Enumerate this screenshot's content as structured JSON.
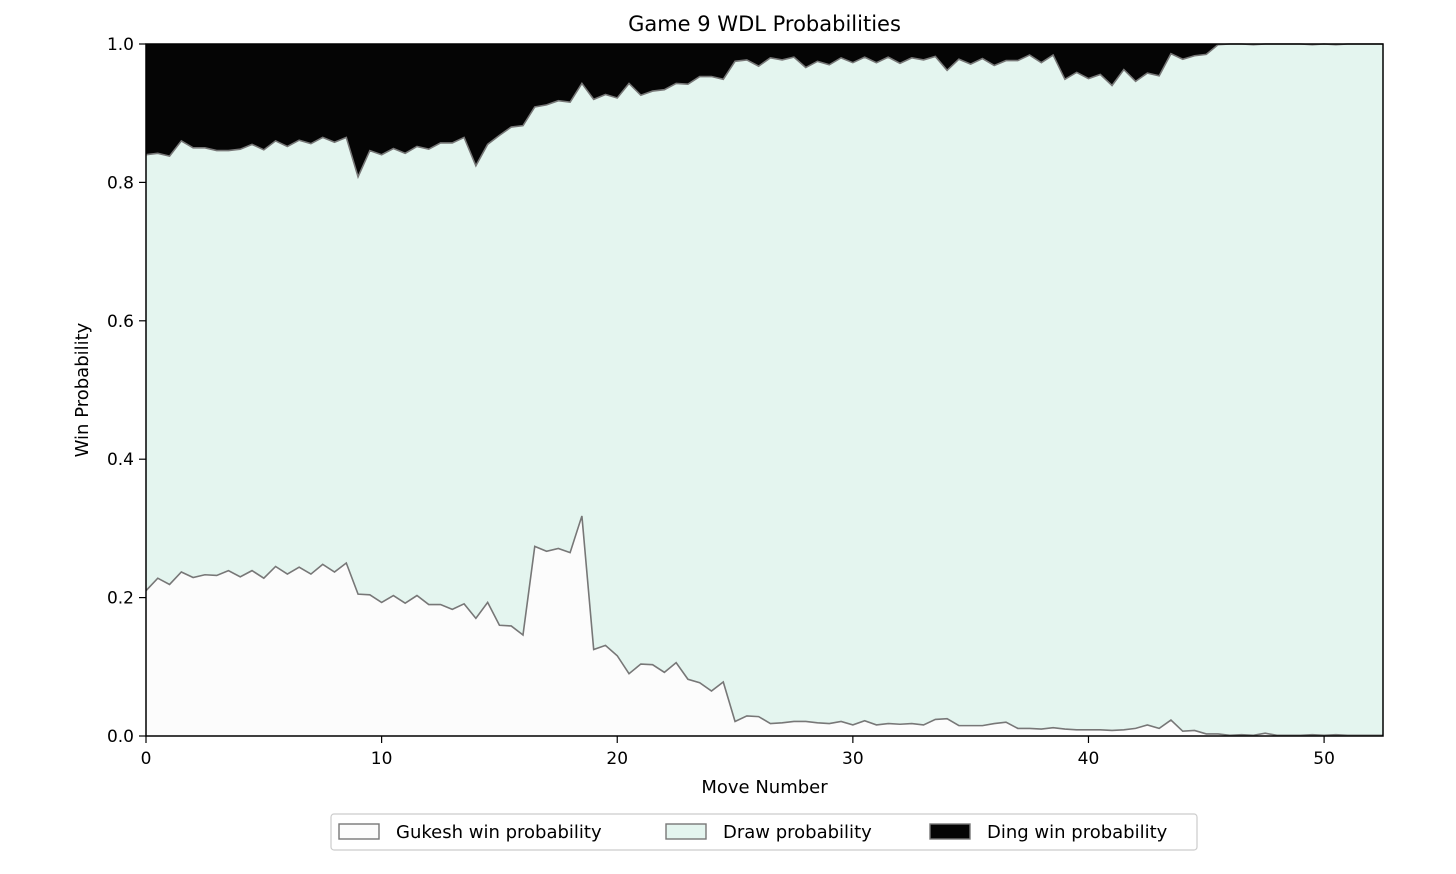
{
  "chart_data": {
    "type": "area",
    "title": "Game 9 WDL Probabilities",
    "xlabel": "Move Number",
    "ylabel": "Win Probability",
    "xlim": [
      0,
      52.5
    ],
    "ylim": [
      0,
      1.0
    ],
    "xticks": [
      0,
      10,
      20,
      30,
      40,
      50
    ],
    "yticks": [
      "0.0",
      "0.2",
      "0.4",
      "0.6",
      "0.8",
      "1.0"
    ],
    "grid": false,
    "legend_position": "bottom-center",
    "x": [
      0,
      0.5,
      1,
      1.5,
      2,
      2.5,
      3,
      3.5,
      4,
      4.5,
      5,
      5.5,
      6,
      6.5,
      7,
      7.5,
      8,
      8.5,
      9,
      9.5,
      10,
      10.5,
      11,
      11.5,
      12,
      12.5,
      13,
      13.5,
      14,
      14.5,
      15,
      15.5,
      16,
      16.5,
      17,
      17.5,
      18,
      18.5,
      19,
      19.5,
      20,
      20.5,
      21,
      21.5,
      22,
      22.5,
      23,
      23.5,
      24,
      24.5,
      25,
      25.5,
      26,
      26.5,
      27,
      27.5,
      28,
      28.5,
      29,
      29.5,
      30,
      30.5,
      31,
      31.5,
      32,
      32.5,
      33,
      33.5,
      34,
      34.5,
      35,
      35.5,
      36,
      36.5,
      37,
      37.5,
      38,
      38.5,
      39,
      39.5,
      40,
      40.5,
      41,
      41.5,
      42,
      42.5,
      43,
      43.5,
      44,
      44.5,
      45,
      45.5,
      46,
      46.5,
      47,
      47.5,
      48,
      48.5,
      49,
      49.5,
      50,
      50.5,
      51,
      51.5,
      52,
      52.5
    ],
    "series": [
      {
        "name": "Gukesh win probability",
        "color": "#fcfcfc",
        "edge_color": "#777777",
        "values": [
          0.21,
          0.228,
          0.219,
          0.237,
          0.229,
          0.233,
          0.232,
          0.239,
          0.23,
          0.239,
          0.228,
          0.245,
          0.234,
          0.244,
          0.234,
          0.248,
          0.237,
          0.25,
          0.205,
          0.204,
          0.193,
          0.203,
          0.192,
          0.203,
          0.19,
          0.19,
          0.183,
          0.191,
          0.17,
          0.193,
          0.16,
          0.159,
          0.146,
          0.274,
          0.267,
          0.271,
          0.265,
          0.318,
          0.125,
          0.131,
          0.116,
          0.09,
          0.104,
          0.103,
          0.092,
          0.106,
          0.082,
          0.077,
          0.065,
          0.078,
          0.021,
          0.029,
          0.028,
          0.018,
          0.019,
          0.021,
          0.021,
          0.019,
          0.018,
          0.021,
          0.016,
          0.022,
          0.016,
          0.018,
          0.017,
          0.018,
          0.016,
          0.024,
          0.025,
          0.015,
          0.015,
          0.015,
          0.018,
          0.02,
          0.011,
          0.011,
          0.01,
          0.012,
          0.01,
          0.009,
          0.009,
          0.009,
          0.008,
          0.009,
          0.011,
          0.016,
          0.011,
          0.023,
          0.007,
          0.008,
          0.003,
          0.003,
          0.001,
          0.002,
          0.001,
          0.004,
          0.001,
          0.001,
          0.001,
          0.002,
          0.001,
          0.002,
          0.001,
          0.001,
          0.001,
          0.001
        ]
      },
      {
        "name": "Draw probability",
        "color": "#e4f5ef",
        "edge_color": "#777777",
        "cumulative_top": [
          0.84,
          0.842,
          0.838,
          0.86,
          0.85,
          0.85,
          0.846,
          0.846,
          0.848,
          0.855,
          0.847,
          0.86,
          0.852,
          0.861,
          0.856,
          0.865,
          0.858,
          0.865,
          0.808,
          0.846,
          0.84,
          0.849,
          0.842,
          0.852,
          0.848,
          0.857,
          0.857,
          0.865,
          0.824,
          0.855,
          0.868,
          0.88,
          0.882,
          0.909,
          0.912,
          0.918,
          0.916,
          0.943,
          0.92,
          0.927,
          0.922,
          0.943,
          0.926,
          0.932,
          0.934,
          0.943,
          0.942,
          0.953,
          0.953,
          0.949,
          0.975,
          0.977,
          0.968,
          0.98,
          0.977,
          0.981,
          0.966,
          0.975,
          0.97,
          0.98,
          0.973,
          0.981,
          0.973,
          0.981,
          0.972,
          0.98,
          0.977,
          0.982,
          0.962,
          0.978,
          0.971,
          0.979,
          0.969,
          0.976,
          0.976,
          0.984,
          0.973,
          0.984,
          0.949,
          0.959,
          0.95,
          0.956,
          0.94,
          0.963,
          0.946,
          0.958,
          0.954,
          0.986,
          0.978,
          0.983,
          0.985,
          0.999,
          1.0,
          1.0,
          0.999,
          1.0,
          1.0,
          1.0,
          1.0,
          0.999,
          1.0,
          0.999,
          1.0,
          1.0,
          1.0,
          1.0
        ]
      },
      {
        "name": "Ding win probability",
        "color": "#050505",
        "edge_color": "#777777"
      }
    ]
  }
}
